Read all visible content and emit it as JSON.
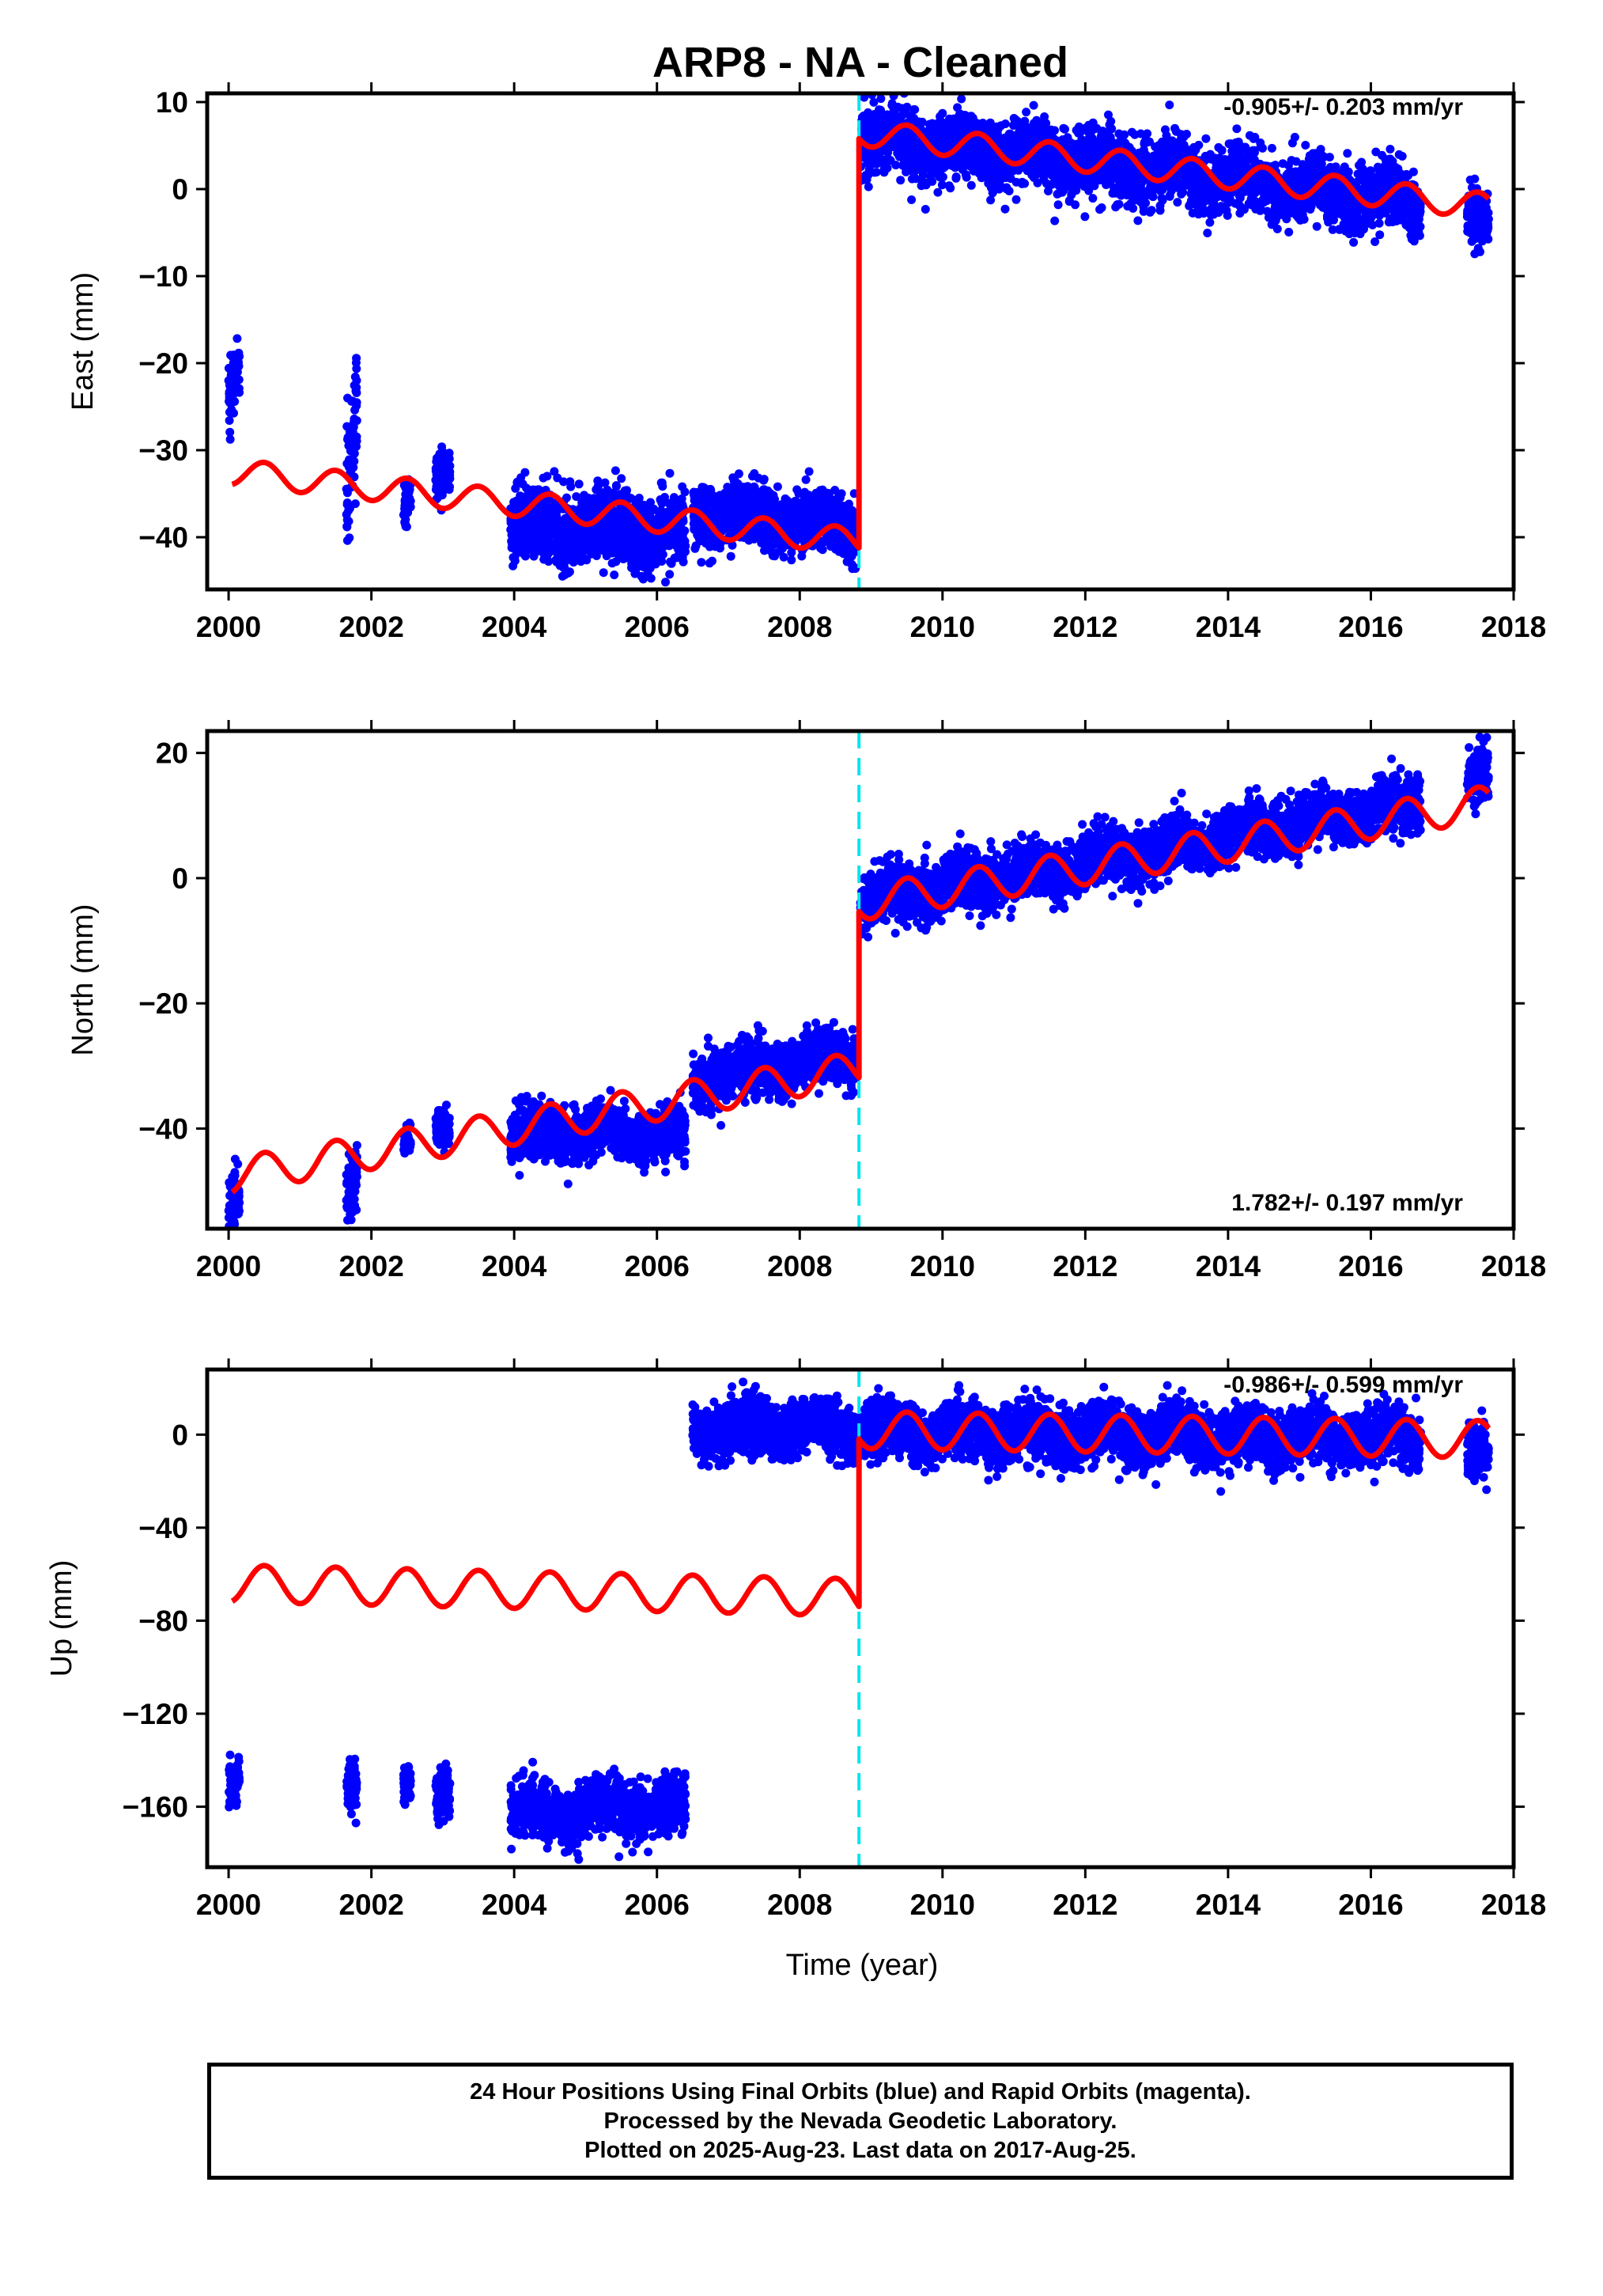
{
  "title": "ARP8  - NA - Cleaned",
  "xlabel": "Time (year)",
  "footer": {
    "line1": "24 Hour Positions Using Final Orbits (blue) and Rapid Orbits (magenta).",
    "line2": "Processed by the Nevada Geodetic Laboratory.",
    "line3": "Plotted on 2025-Aug-23. Last data on 2017-Aug-25."
  },
  "colors": {
    "data": "#0000ff",
    "model": "#ff0000",
    "offset": "#00e5ee",
    "frame": "#000000"
  },
  "chart_data": [
    {
      "type": "scatter",
      "panel": "east",
      "ylabel": "East (mm)",
      "rate_label": "-0.905+/- 0.203 mm/yr",
      "rate_position": "top-right",
      "xlim": [
        1999.7,
        2018.0
      ],
      "ylim": [
        -46,
        11
      ],
      "xticks": [
        2000,
        2002,
        2004,
        2006,
        2008,
        2010,
        2012,
        2014,
        2016,
        2018
      ],
      "yticks": [
        10,
        0,
        -10,
        -20,
        -30,
        -40
      ],
      "ytick_labels": [
        "10",
        "0",
        "−10",
        "−20",
        "−30",
        "−40"
      ],
      "offset_epoch": 2008.83,
      "data_clusters": [
        {
          "x": [
            2000.0,
            2000.15
          ],
          "y": [
            -24,
            -20
          ],
          "spread": 2.5
        },
        {
          "x": [
            2001.65,
            2001.8
          ],
          "y": [
            -35,
            -24
          ],
          "spread": 3.5
        },
        {
          "x": [
            2002.45,
            2002.55
          ],
          "y": [
            -37,
            -35
          ],
          "spread": 1.5
        },
        {
          "x": [
            2002.9,
            2003.1
          ],
          "y": [
            -33,
            -32
          ],
          "spread": 1.5
        },
        {
          "x": [
            2003.95,
            2006.4
          ],
          "y": [
            -38.5,
            -39.5
          ],
          "spread": 2.5
        },
        {
          "x": [
            2006.5,
            2008.8
          ],
          "y": [
            -37,
            -38.5
          ],
          "spread": 2.0
        },
        {
          "x": [
            2008.85,
            2016.7
          ],
          "y": [
            6,
            -1.5
          ],
          "spread": 2.2
        },
        {
          "x": [
            2017.35,
            2017.65
          ],
          "y": [
            -3,
            -4
          ],
          "spread": 2.0
        }
      ],
      "model_segments": [
        {
          "x_start": 2000.05,
          "x_end": 2008.83,
          "y_start": -32.5,
          "y_end": -40.5,
          "amplitude": 1.5
        },
        {
          "x_start": 2008.83,
          "x_end": 2017.65,
          "y_start": 6.5,
          "y_end": -2.0,
          "amplitude": 1.5
        }
      ]
    },
    {
      "type": "scatter",
      "panel": "north",
      "ylabel": "North (mm)",
      "rate_label": "1.782+/- 0.197 mm/yr",
      "rate_position": "bottom-right",
      "xlim": [
        1999.7,
        2018.0
      ],
      "ylim": [
        -56,
        23.5
      ],
      "xticks": [
        2000,
        2002,
        2004,
        2006,
        2008,
        2010,
        2012,
        2014,
        2016,
        2018
      ],
      "yticks": [
        20,
        0,
        -20,
        -40
      ],
      "ytick_labels": [
        "20",
        "0",
        "−20",
        "−40"
      ],
      "offset_epoch": 2008.83,
      "data_clusters": [
        {
          "x": [
            2000.0,
            2000.15
          ],
          "y": [
            -52,
            -51
          ],
          "spread": 3.0
        },
        {
          "x": [
            2001.65,
            2001.8
          ],
          "y": [
            -50,
            -48
          ],
          "spread": 3.0
        },
        {
          "x": [
            2002.45,
            2002.55
          ],
          "y": [
            -42,
            -42
          ],
          "spread": 2.0
        },
        {
          "x": [
            2002.9,
            2003.1
          ],
          "y": [
            -40,
            -40
          ],
          "spread": 2.0
        },
        {
          "x": [
            2003.95,
            2006.4
          ],
          "y": [
            -41,
            -41
          ],
          "spread": 2.5
        },
        {
          "x": [
            2006.5,
            2008.8
          ],
          "y": [
            -32,
            -28
          ],
          "spread": 2.5
        },
        {
          "x": [
            2008.85,
            2016.7
          ],
          "y": [
            -4,
            12
          ],
          "spread": 2.5
        },
        {
          "x": [
            2017.35,
            2017.65
          ],
          "y": [
            16,
            17
          ],
          "spread": 2.5
        }
      ],
      "model_segments": [
        {
          "x_start": 2000.05,
          "x_end": 2008.83,
          "y_start": -47.5,
          "y_end": -30.5,
          "amplitude": 2.8
        },
        {
          "x_start": 2008.83,
          "x_end": 2017.65,
          "y_start": -4.0,
          "y_end": 12.0,
          "amplitude": 2.8
        }
      ]
    },
    {
      "type": "scatter",
      "panel": "up",
      "ylabel": "Up (mm)",
      "rate_label": "-0.986+/- 0.599 mm/yr",
      "rate_position": "top-right",
      "xlim": [
        1999.7,
        2018.0
      ],
      "ylim": [
        -186,
        28
      ],
      "xticks": [
        2000,
        2002,
        2004,
        2006,
        2008,
        2010,
        2012,
        2014,
        2016,
        2018
      ],
      "yticks": [
        0,
        -40,
        -80,
        -120,
        -160
      ],
      "ytick_labels": [
        "0",
        "−40",
        "−80",
        "−120",
        "−160"
      ],
      "offset_epoch": 2008.83,
      "data_clusters": [
        {
          "x": [
            2000.0,
            2000.15
          ],
          "y": [
            -150,
            -150
          ],
          "spread": 6
        },
        {
          "x": [
            2001.65,
            2001.8
          ],
          "y": [
            -150,
            -150
          ],
          "spread": 7
        },
        {
          "x": [
            2002.45,
            2002.55
          ],
          "y": [
            -150,
            -150
          ],
          "spread": 5
        },
        {
          "x": [
            2002.9,
            2003.1
          ],
          "y": [
            -155,
            -155
          ],
          "spread": 6
        },
        {
          "x": [
            2003.95,
            2006.4
          ],
          "y": [
            -162,
            -160
          ],
          "spread": 7
        },
        {
          "x": [
            2006.5,
            2016.7
          ],
          "y": [
            3,
            -2
          ],
          "spread": 7
        },
        {
          "x": [
            2017.35,
            2017.65
          ],
          "y": [
            -6,
            -6
          ],
          "spread": 7
        }
      ],
      "model_segments": [
        {
          "x_start": 2000.05,
          "x_end": 2008.83,
          "y_start": -64,
          "y_end": -70,
          "amplitude": 8
        },
        {
          "x_start": 2008.83,
          "x_end": 2017.65,
          "y_start": 2.0,
          "y_end": -2.0,
          "amplitude": 8
        }
      ]
    }
  ]
}
